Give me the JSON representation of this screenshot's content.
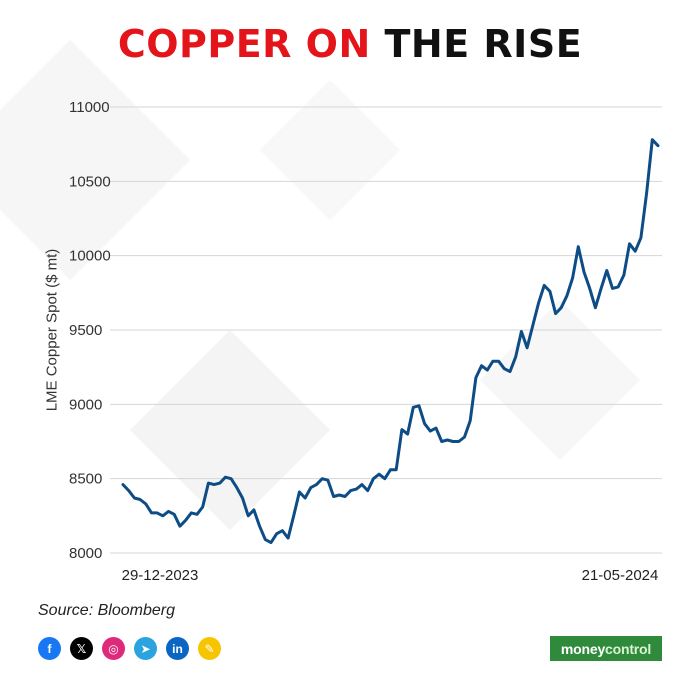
{
  "header": {
    "title_accent": "COPPER ON",
    "title_rest": " THE RISE"
  },
  "footer": {
    "source": "Source: Bloomberg",
    "brand_part1": "money",
    "brand_part2": "control",
    "socials": [
      {
        "icon": "facebook-icon",
        "glyph": "f",
        "color": "#1877f2"
      },
      {
        "icon": "x-icon",
        "glyph": "𝕏",
        "color": "#000000"
      },
      {
        "icon": "instagram-icon",
        "glyph": "◎",
        "color": "#dd2a7b"
      },
      {
        "icon": "telegram-icon",
        "glyph": "➤",
        "color": "#2aa3df"
      },
      {
        "icon": "linkedin-icon",
        "glyph": "in",
        "color": "#0a66c2"
      },
      {
        "icon": "koo-icon",
        "glyph": "✎",
        "color": "#f7c500"
      }
    ]
  },
  "chart_data": {
    "type": "line",
    "title": "COPPER ON THE RISE",
    "ylabel": "LME Copper Spot ($ mt)",
    "xlabel": "",
    "ylim": [
      8000,
      11000
    ],
    "yticks": [
      8000,
      8500,
      9000,
      9500,
      10000,
      10500,
      11000
    ],
    "x_tick_labels": [
      "29-12-2023",
      "21-05-2024"
    ],
    "x_start": "29-12-2023",
    "x_end": "21-05-2024",
    "grid": "horizontal",
    "line_color": "#0e4c86",
    "series": [
      {
        "values": [
          8460,
          8420,
          8370,
          8360,
          8330,
          8270,
          8270,
          8250,
          8280,
          8260,
          8180,
          8220,
          8270,
          8260,
          8310,
          8470,
          8460,
          8470,
          8510,
          8500,
          8440,
          8370,
          8250,
          8290,
          8180,
          8090,
          8070,
          8130,
          8150,
          8100,
          8250,
          8410,
          8370,
          8440,
          8460,
          8500,
          8490,
          8380,
          8390,
          8380,
          8420,
          8430,
          8460,
          8420,
          8500,
          8530,
          8500,
          8560,
          8560,
          8830,
          8800,
          8980,
          8990,
          8870,
          8820,
          8840,
          8750,
          8760,
          8750,
          8750,
          8780,
          8890,
          9180,
          9260,
          9230,
          9290,
          9290,
          9240,
          9220,
          9320,
          9490,
          9380,
          9530,
          9680,
          9800,
          9760,
          9610,
          9650,
          9730,
          9850,
          10060,
          9890,
          9780,
          9650,
          9780,
          9900,
          9780,
          9790,
          9870,
          10080,
          10030,
          10120,
          10420,
          10780,
          10740
        ]
      }
    ]
  }
}
